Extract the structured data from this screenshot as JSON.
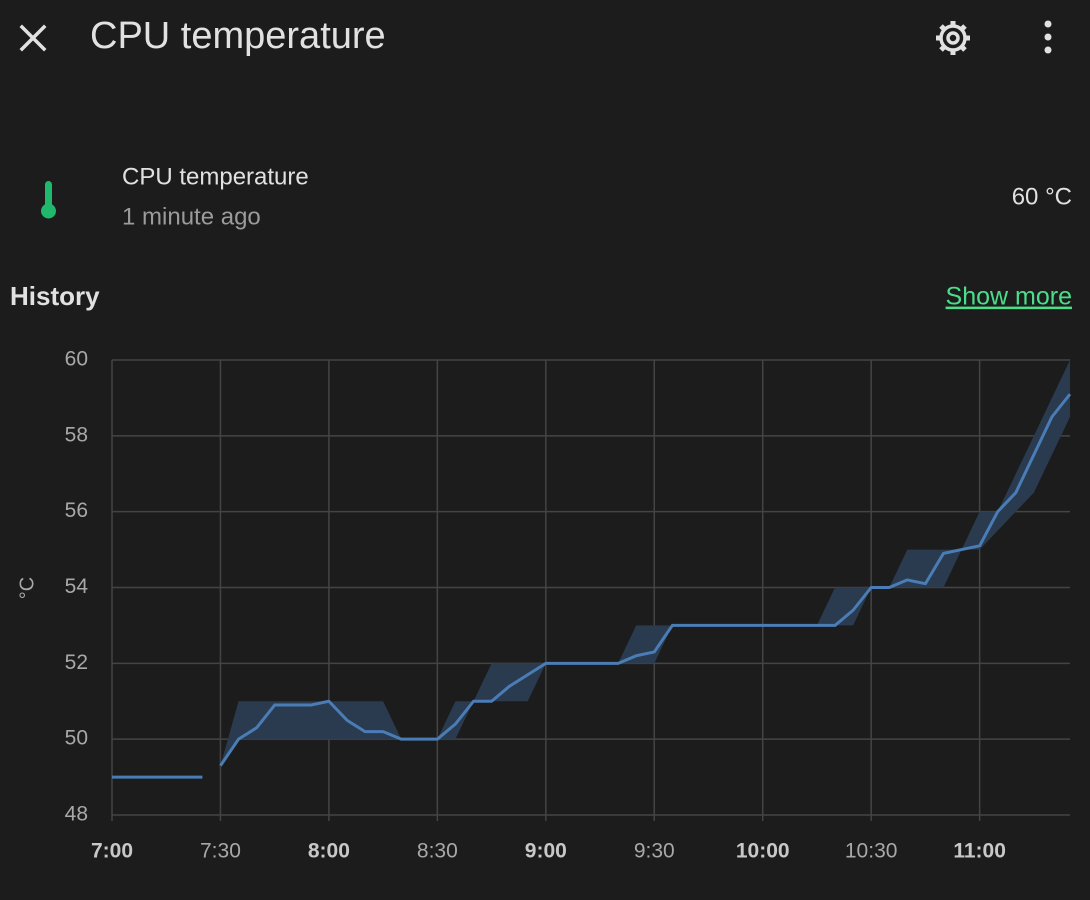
{
  "header": {
    "title": "CPU temperature"
  },
  "entity": {
    "name": "CPU temperature",
    "last_changed": "1 minute ago",
    "state": "60 °C"
  },
  "history": {
    "title": "History",
    "link": "Show more"
  },
  "chart_data": {
    "type": "line",
    "y_label": "°C",
    "ylim": [
      48,
      60
    ],
    "yticks": [
      48,
      50,
      52,
      54,
      56,
      58,
      60
    ],
    "xlim": [
      "7:00",
      "11:25"
    ],
    "xticks": [
      "7:00",
      "7:30",
      "8:00",
      "8:30",
      "9:00",
      "9:30",
      "10:00",
      "10:30",
      "11:00"
    ],
    "grid": true,
    "x": [
      "7:00",
      "7:05",
      "7:10",
      "7:15",
      "7:20",
      "7:25",
      "7:27",
      "7:30",
      "7:35",
      "7:40",
      "7:45",
      "7:50",
      "7:55",
      "8:00",
      "8:05",
      "8:10",
      "8:15",
      "8:20",
      "8:25",
      "8:30",
      "8:35",
      "8:40",
      "8:45",
      "8:50",
      "8:55",
      "9:00",
      "9:05",
      "9:10",
      "9:15",
      "9:20",
      "9:25",
      "9:30",
      "9:35",
      "9:40",
      "9:45",
      "9:50",
      "9:55",
      "10:00",
      "10:05",
      "10:10",
      "10:15",
      "10:20",
      "10:25",
      "10:30",
      "10:35",
      "10:40",
      "10:45",
      "10:50",
      "10:55",
      "11:00",
      "11:05",
      "11:10",
      "11:15",
      "11:20",
      "11:25"
    ],
    "series": [
      {
        "color": "#4a7db5",
        "band_color": "#2a3a4f",
        "values": [
          49,
          49,
          49,
          49,
          49,
          49,
          null,
          49.3,
          50,
          50.3,
          50.9,
          50.9,
          50.9,
          51,
          50.5,
          50.2,
          50.2,
          50,
          50,
          50,
          50.4,
          51,
          51,
          51.4,
          51.7,
          52,
          52,
          52,
          52,
          52,
          52.2,
          52.3,
          53,
          53,
          53,
          53,
          53,
          53,
          53,
          53,
          53,
          53,
          53.4,
          54,
          54,
          54.2,
          54.1,
          54.9,
          55,
          55.1,
          56,
          56.5,
          57.5,
          58.5,
          59.1
        ],
        "min_values": [
          49,
          49,
          49,
          49,
          49,
          49,
          null,
          49.3,
          50,
          50,
          50,
          50,
          50,
          50,
          50,
          50,
          50,
          50,
          50,
          50,
          50,
          51,
          51,
          51,
          51,
          52,
          52,
          52,
          52,
          52,
          52,
          52,
          53,
          53,
          53,
          53,
          53,
          53,
          53,
          53,
          53,
          53,
          53,
          54,
          54,
          54,
          54,
          54,
          55,
          55,
          55.5,
          56,
          56.5,
          57.5,
          58.5
        ],
        "max_values": [
          49,
          49,
          49,
          49,
          49,
          49,
          null,
          49.3,
          51,
          51,
          51,
          51,
          51,
          51,
          51,
          51,
          51,
          50,
          50,
          50,
          51,
          51,
          52,
          52,
          52,
          52,
          52,
          52,
          52,
          52,
          53,
          53,
          53,
          53,
          53,
          53,
          53,
          53,
          53,
          53,
          53,
          54,
          54,
          54,
          54,
          55,
          55,
          55,
          55,
          56,
          56,
          57,
          58,
          59,
          60
        ]
      }
    ]
  }
}
